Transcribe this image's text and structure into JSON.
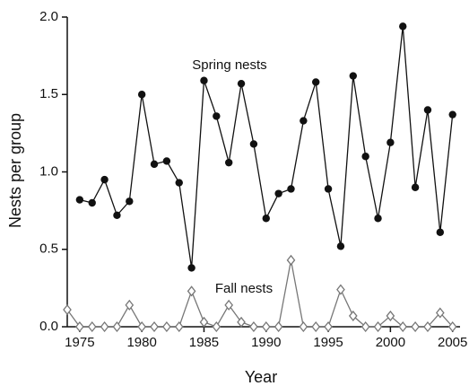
{
  "chart_data": {
    "type": "line",
    "x_label": "Year",
    "y_label": "Nests per group",
    "annotations": [
      "Spring nests",
      "Fall nests"
    ],
    "x": [
      1974,
      1975,
      1976,
      1977,
      1978,
      1979,
      1980,
      1981,
      1982,
      1983,
      1984,
      1985,
      1986,
      1987,
      1988,
      1989,
      1990,
      1991,
      1992,
      1993,
      1994,
      1995,
      1996,
      1997,
      1998,
      1999,
      2000,
      2001,
      2002,
      2003,
      2004,
      2005
    ],
    "series": [
      {
        "name": "Spring nests",
        "color": "#111111",
        "marker": "circle",
        "values": [
          null,
          0.82,
          0.8,
          0.95,
          0.72,
          0.81,
          1.5,
          1.05,
          1.07,
          0.93,
          0.38,
          1.59,
          1.36,
          1.06,
          1.57,
          1.18,
          0.7,
          0.86,
          0.89,
          1.33,
          1.58,
          0.89,
          0.52,
          1.62,
          1.1,
          0.7,
          1.19,
          1.94,
          0.9,
          1.4,
          0.61,
          1.37
        ]
      },
      {
        "name": "Fall nests",
        "color": "#777777",
        "marker": "diamond",
        "values": [
          0.11,
          0,
          0,
          0,
          0,
          0.14,
          0,
          0,
          0,
          0,
          0.23,
          0.03,
          0,
          0.14,
          0.03,
          0,
          0,
          0,
          0.43,
          0,
          0,
          0,
          0.24,
          0.07,
          0,
          0,
          0.07,
          0,
          0,
          0,
          0.09,
          0
        ]
      }
    ],
    "xlim": [
      1974,
      2005.6
    ],
    "xticks": [
      1975,
      1980,
      1985,
      1990,
      1995,
      2000,
      2005
    ],
    "ylim": [
      0,
      2
    ],
    "yticks": [
      {
        "value": 0,
        "label": "0.0"
      },
      0.5,
      {
        "value": 1,
        "label": "1.0"
      },
      1.5,
      {
        "value": 2,
        "label": "2.0"
      }
    ]
  }
}
